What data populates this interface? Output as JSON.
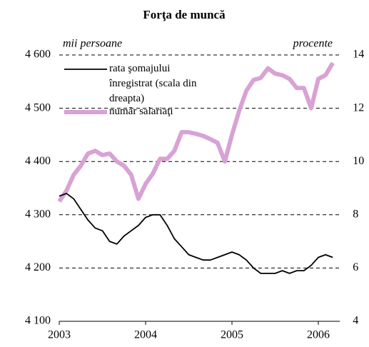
{
  "chart_data": {
    "type": "line",
    "title": "Forţa de muncă",
    "ylabel": "mii persoane",
    "y2label": "procente",
    "x": [
      2003,
      2003.083,
      2003.167,
      2003.25,
      2003.333,
      2003.417,
      2003.5,
      2003.583,
      2003.667,
      2003.75,
      2003.833,
      2003.917,
      2004,
      2004.083,
      2004.167,
      2004.25,
      2004.333,
      2004.417,
      2004.5,
      2004.583,
      2004.667,
      2004.75,
      2004.833,
      2004.917,
      2005,
      2005.083,
      2005.167,
      2005.25,
      2005.333,
      2005.417,
      2005.5,
      2005.583,
      2005.667,
      2005.75,
      2005.833,
      2005.917,
      2006,
      2006.083,
      2006.167
    ],
    "xlim": [
      2003,
      2006.25
    ],
    "xticks": [
      2003,
      2004,
      2005,
      2006
    ],
    "ylim": [
      4100,
      4600
    ],
    "yticks": [
      {
        "value": 4100,
        "label": "4 100"
      },
      {
        "value": 4200,
        "label": "4 200"
      },
      {
        "value": 4300,
        "label": "4 300"
      },
      {
        "value": 4400,
        "label": "4 400"
      },
      {
        "value": 4500,
        "label": "4 500"
      },
      {
        "value": 4600,
        "label": "4 600"
      }
    ],
    "y2lim": [
      4,
      14
    ],
    "y2ticks": [
      4,
      6,
      8,
      10,
      12,
      14
    ],
    "grid": true,
    "series": [
      {
        "name": "rata şomajului înregistrat (scala din dreapta)",
        "color": "#000000",
        "axis": "y2",
        "values": [
          8.7,
          8.8,
          8.6,
          8.2,
          7.8,
          7.5,
          7.4,
          7.0,
          6.9,
          7.2,
          7.4,
          7.6,
          7.9,
          8.0,
          8.0,
          7.6,
          7.1,
          6.8,
          6.5,
          6.4,
          6.3,
          6.3,
          6.4,
          6.5,
          6.6,
          6.5,
          6.3,
          6.0,
          5.8,
          5.8,
          5.8,
          5.9,
          5.8,
          5.9,
          5.9,
          6.1,
          6.4,
          6.5,
          6.4
        ]
      },
      {
        "name": "număr salariaţi",
        "color": "#d8a2d4",
        "values": [
          4325,
          4345,
          4375,
          4392,
          4415,
          4420,
          4412,
          4415,
          4400,
          4392,
          4375,
          4330,
          4358,
          4377,
          4405,
          4405,
          4420,
          4455,
          4455,
          4452,
          4448,
          4442,
          4435,
          4400,
          4450,
          4495,
          4533,
          4553,
          4557,
          4575,
          4565,
          4562,
          4555,
          4538,
          4538,
          4500,
          4555,
          4562,
          4585
        ]
      }
    ]
  }
}
